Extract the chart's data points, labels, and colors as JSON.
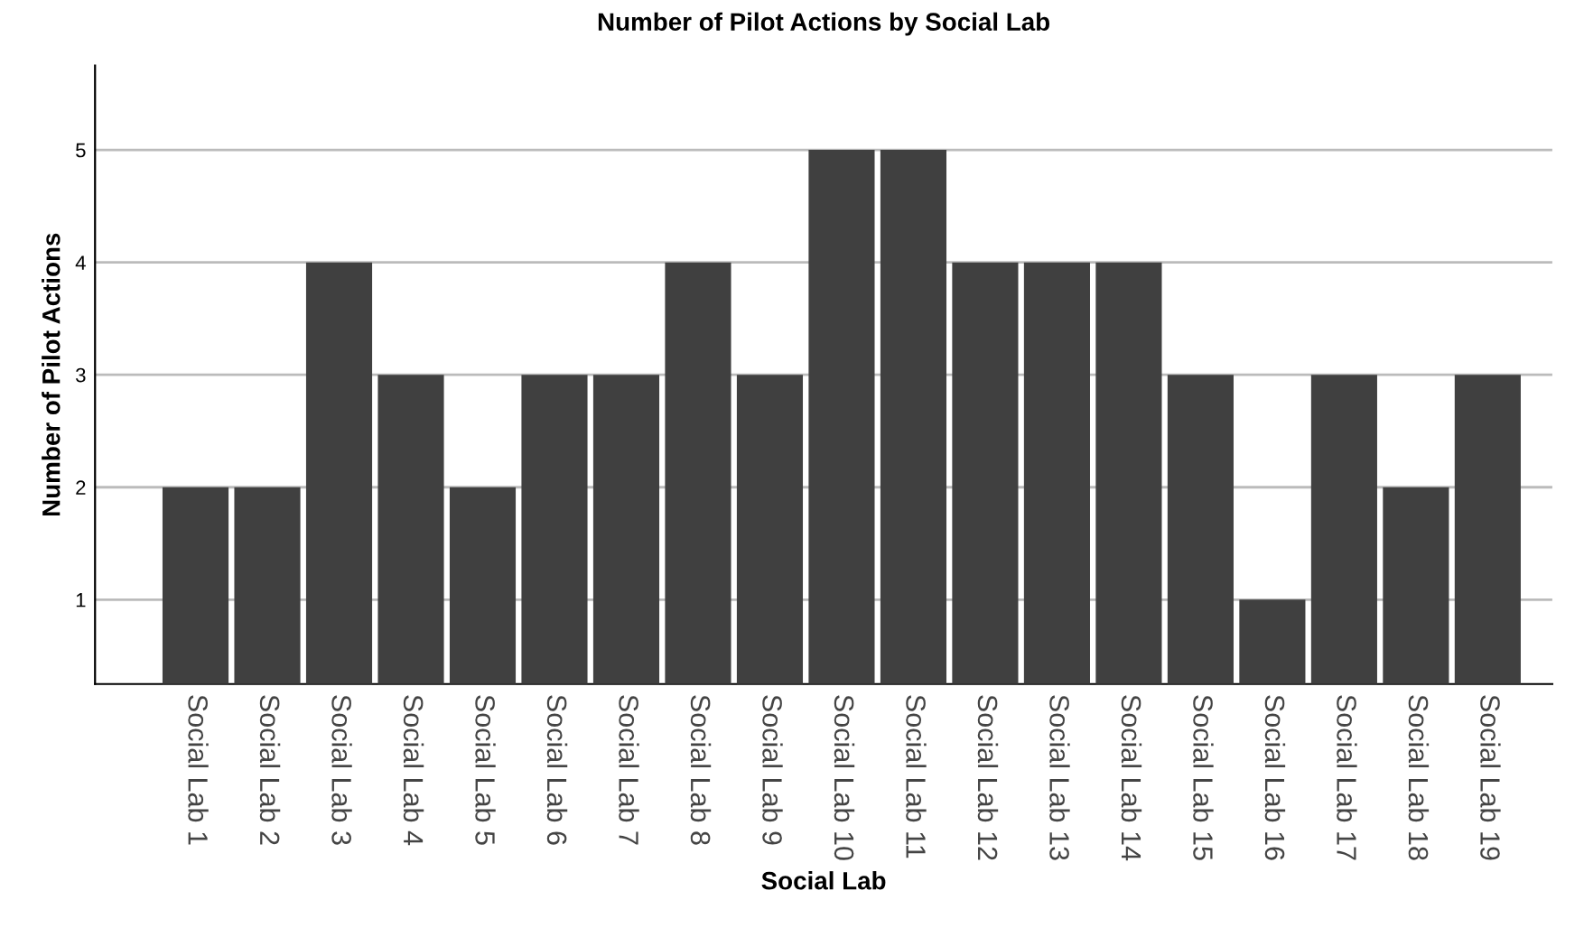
{
  "chart_data": {
    "type": "bar",
    "title": "Number of Pilot Actions by Social Lab",
    "xlabel": "Social Lab",
    "ylabel": "Number of Pilot Actions",
    "categories": [
      "Social Lab 1",
      "Social Lab 2",
      "Social Lab 3",
      "Social Lab 4",
      "Social Lab 5",
      "Social Lab 6",
      "Social Lab 7",
      "Social Lab 8",
      "Social Lab 9",
      "Social Lab 10",
      "Social Lab 11",
      "Social Lab 12",
      "Social Lab 13",
      "Social Lab 14",
      "Social Lab 15",
      "Social Lab 16",
      "Social Lab 17",
      "Social Lab 18",
      "Social Lab 19"
    ],
    "values": [
      2,
      2,
      4,
      3,
      2,
      3,
      3,
      4,
      3,
      5,
      5,
      4,
      4,
      4,
      3,
      1,
      3,
      2,
      3
    ],
    "color": "#404040",
    "ylim": [
      0.25,
      5.75
    ],
    "yticks": [
      1,
      2,
      3,
      4,
      5
    ],
    "grid": "y",
    "legend": false
  }
}
